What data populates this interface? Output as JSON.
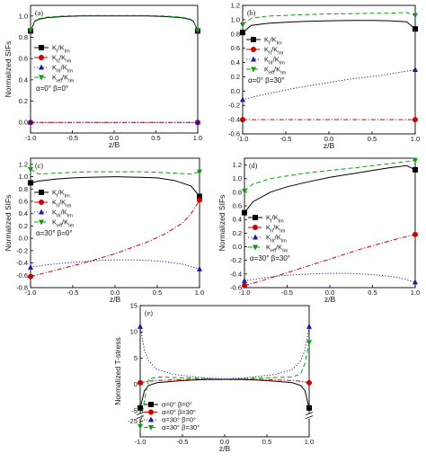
{
  "figure_title": "",
  "chart_data": [
    {
      "type": "line",
      "panel_label": "(a)",
      "ylabel": "Normalized SIFs",
      "xlabel": "z/B",
      "xlim": [
        -1.0,
        1.0
      ],
      "ylim": [
        -0.1,
        1.1
      ],
      "xticks": [
        "-1.0",
        "-0.5",
        "0.0",
        "0.5",
        "1.0"
      ],
      "yticks": [
        "0.0",
        "0.2",
        "0.4",
        "0.6",
        "0.8",
        "1.0"
      ],
      "grid": false,
      "legend_placement": "center-left",
      "annotation": "α=0° β=0°",
      "series": [
        {
          "name": "KI/KIm",
          "label_main": "K",
          "label_sub": "I",
          "label_den_sub": "Im",
          "style": "solid",
          "color": "#000000",
          "marker": "square",
          "x": [
            -1.0,
            -0.95,
            -0.9,
            -0.8,
            -0.6,
            -0.4,
            -0.2,
            0.0,
            0.2,
            0.4,
            0.6,
            0.8,
            0.9,
            0.95,
            1.0
          ],
          "y": [
            0.86,
            0.95,
            0.97,
            0.985,
            0.995,
            1.0,
            1.0,
            1.0,
            1.0,
            1.0,
            0.995,
            0.985,
            0.97,
            0.95,
            0.86
          ]
        },
        {
          "name": "KII/KIm",
          "label_main": "K",
          "label_sub": "II",
          "label_den_sub": "Im",
          "style": "dashdot",
          "color": "#cc0000",
          "marker": "circle",
          "x": [
            -1.0,
            -0.5,
            0.0,
            0.5,
            1.0
          ],
          "y": [
            0.0,
            0.0,
            0.0,
            0.0,
            0.0
          ]
        },
        {
          "name": "KIII/KIm",
          "label_main": "K",
          "label_sub": "III",
          "label_den_sub": "Im",
          "style": "dotted",
          "color": "#1a1aaa",
          "marker": "triangle-up",
          "x": [
            -1.0,
            -0.5,
            0.0,
            0.5,
            1.0
          ],
          "y": [
            0.0,
            0.0,
            0.0,
            0.0,
            0.0
          ]
        },
        {
          "name": "Keff/KIm",
          "label_main": "K",
          "label_sub": "eff",
          "label_den_sub": "Im",
          "style": "dashed",
          "color": "#119911",
          "marker": "triangle-down",
          "x": [
            -1.0,
            -0.95,
            -0.9,
            -0.8,
            -0.6,
            -0.4,
            -0.2,
            0.0,
            0.2,
            0.4,
            0.6,
            0.8,
            0.9,
            0.95,
            1.0
          ],
          "y": [
            0.865,
            0.955,
            0.975,
            0.99,
            1.0,
            1.005,
            1.005,
            1.005,
            1.005,
            1.005,
            1.0,
            0.99,
            0.975,
            0.955,
            0.865
          ]
        }
      ]
    },
    {
      "type": "line",
      "panel_label": "(b)",
      "ylabel": "",
      "xlabel": "z/B",
      "xlim": [
        -1.0,
        1.0
      ],
      "ylim": [
        -0.6,
        1.2
      ],
      "xticks": [
        "-1.0",
        "-0.5",
        "0.0",
        "0.5",
        "1.0"
      ],
      "yticks": [
        "-0.6",
        "-0.4",
        "-0.2",
        "0.0",
        "0.2",
        "0.4",
        "0.6",
        "0.8",
        "1.0",
        "1.2"
      ],
      "grid": false,
      "legend_placement": "center-left",
      "annotation": "α=0° β=30°",
      "series": [
        {
          "name": "KI/KIm",
          "label_main": "K",
          "label_sub": "I",
          "label_den_sub": "Im",
          "style": "solid",
          "color": "#000000",
          "marker": "square",
          "x": [
            -1.0,
            -0.9,
            -0.7,
            -0.5,
            -0.3,
            0.0,
            0.3,
            0.5,
            0.7,
            0.9,
            1.0
          ],
          "y": [
            0.82,
            0.92,
            0.95,
            0.965,
            0.975,
            0.985,
            0.99,
            0.99,
            0.985,
            0.97,
            0.87
          ]
        },
        {
          "name": "KII/KIm",
          "label_main": "K",
          "label_sub": "II",
          "label_den_sub": "Im",
          "style": "dashdot",
          "color": "#cc0000",
          "marker": "circle",
          "x": [
            -1.0,
            -0.5,
            0.0,
            0.5,
            1.0
          ],
          "y": [
            -0.4,
            -0.4,
            -0.4,
            -0.4,
            -0.4
          ]
        },
        {
          "name": "KIII/KIm",
          "label_main": "K",
          "label_sub": "III",
          "label_den_sub": "Im",
          "style": "dotted",
          "color": "#1a1aaa",
          "marker": "triangle-up",
          "x": [
            -1.0,
            -0.8,
            -0.6,
            -0.4,
            -0.2,
            0.0,
            0.2,
            0.4,
            0.6,
            0.8,
            1.0
          ],
          "y": [
            -0.12,
            -0.06,
            -0.01,
            0.04,
            0.08,
            0.12,
            0.16,
            0.19,
            0.22,
            0.26,
            0.3
          ]
        },
        {
          "name": "Keff/KIm",
          "label_main": "K",
          "label_sub": "eff",
          "label_den_sub": "Im",
          "style": "dashed",
          "color": "#119911",
          "marker": "triangle-down",
          "x": [
            -1.0,
            -0.9,
            -0.7,
            -0.5,
            -0.3,
            0.0,
            0.3,
            0.5,
            0.7,
            0.9,
            1.0
          ],
          "y": [
            0.93,
            1.02,
            1.05,
            1.06,
            1.07,
            1.08,
            1.085,
            1.09,
            1.09,
            1.1,
            1.06
          ]
        }
      ]
    },
    {
      "type": "line",
      "panel_label": "(c)",
      "ylabel": "Normalized SIFs",
      "xlabel": "z/B",
      "xlim": [
        -1.0,
        1.0
      ],
      "ylim": [
        -0.8,
        1.3
      ],
      "xticks": [
        "-1.0",
        "-0.5",
        "0.0",
        "0.5",
        "1.0"
      ],
      "yticks": [
        "-0.8",
        "-0.6",
        "-0.4",
        "-0.2",
        "0.0",
        "0.2",
        "0.4",
        "0.6",
        "0.8",
        "1.0",
        "1.2"
      ],
      "grid": false,
      "legend_placement": "center-left",
      "annotation": "α=30° β=0°",
      "series": [
        {
          "name": "KI/KIm",
          "label_main": "K",
          "label_sub": "I",
          "label_den_sub": "Im",
          "style": "solid",
          "color": "#000000",
          "marker": "square",
          "x": [
            -1.0,
            -0.9,
            -0.7,
            -0.5,
            -0.3,
            0.0,
            0.3,
            0.5,
            0.7,
            0.9,
            1.0
          ],
          "y": [
            0.9,
            0.93,
            0.96,
            0.98,
            0.99,
            1.0,
            0.99,
            0.98,
            0.94,
            0.85,
            0.68
          ]
        },
        {
          "name": "KII/KIm",
          "label_main": "K",
          "label_sub": "II",
          "label_den_sub": "Im",
          "style": "dashdot",
          "color": "#cc0000",
          "marker": "circle",
          "x": [
            -1.0,
            -0.8,
            -0.6,
            -0.4,
            -0.2,
            0.0,
            0.2,
            0.4,
            0.6,
            0.8,
            0.9,
            1.0
          ],
          "y": [
            -0.62,
            -0.55,
            -0.48,
            -0.41,
            -0.33,
            -0.25,
            -0.15,
            -0.05,
            0.08,
            0.25,
            0.4,
            0.62
          ]
        },
        {
          "name": "KIII/KIm",
          "label_main": "K",
          "label_sub": "III",
          "label_den_sub": "Im",
          "style": "dotted",
          "color": "#1a1aaa",
          "marker": "triangle-up",
          "x": [
            -1.0,
            -0.8,
            -0.6,
            -0.4,
            -0.2,
            0.0,
            0.2,
            0.4,
            0.6,
            0.8,
            1.0
          ],
          "y": [
            -0.47,
            -0.43,
            -0.4,
            -0.38,
            -0.36,
            -0.35,
            -0.35,
            -0.36,
            -0.38,
            -0.42,
            -0.5
          ]
        },
        {
          "name": "Keff/KIm",
          "label_main": "K",
          "label_sub": "eff",
          "label_den_sub": "Im",
          "style": "dashed",
          "color": "#119911",
          "marker": "triangle-down",
          "x": [
            -1.0,
            -0.9,
            -0.7,
            -0.5,
            -0.3,
            0.0,
            0.3,
            0.5,
            0.7,
            0.9,
            1.0
          ],
          "y": [
            1.12,
            1.04,
            1.06,
            1.07,
            1.08,
            1.08,
            1.08,
            1.07,
            1.06,
            1.04,
            1.08
          ]
        }
      ]
    },
    {
      "type": "line",
      "panel_label": "(d)",
      "ylabel": "Normalized SIFs",
      "xlabel": "z/B",
      "xlim": [
        -1.0,
        1.0
      ],
      "ylim": [
        -0.6,
        1.3
      ],
      "xticks": [
        "-1.0",
        "-0.5",
        "0.0",
        "0.5",
        "1.0"
      ],
      "yticks": [
        "-0.6",
        "-0.4",
        "-0.2",
        "0.0",
        "0.2",
        "0.4",
        "0.6",
        "0.8",
        "1.0",
        "1.2"
      ],
      "grid": false,
      "legend_placement": "center-left",
      "annotation": "α=30° β=30°",
      "series": [
        {
          "name": "KI/KIm",
          "label_main": "K",
          "label_sub": "I",
          "label_den_sub": "Im",
          "style": "solid",
          "color": "#000000",
          "marker": "square",
          "x": [
            -1.0,
            -0.9,
            -0.7,
            -0.5,
            -0.3,
            0.0,
            0.3,
            0.5,
            0.7,
            0.9,
            1.0
          ],
          "y": [
            0.5,
            0.66,
            0.8,
            0.88,
            0.94,
            1.02,
            1.08,
            1.12,
            1.16,
            1.19,
            1.13
          ]
        },
        {
          "name": "KII/KIm",
          "label_main": "K",
          "label_sub": "II",
          "label_den_sub": "Im",
          "style": "dashdot",
          "color": "#cc0000",
          "marker": "circle",
          "x": [
            -1.0,
            -0.8,
            -0.6,
            -0.4,
            -0.2,
            0.0,
            0.2,
            0.4,
            0.6,
            0.8,
            1.0
          ],
          "y": [
            -0.57,
            -0.5,
            -0.42,
            -0.34,
            -0.26,
            -0.18,
            -0.1,
            -0.02,
            0.05,
            0.12,
            0.18
          ]
        },
        {
          "name": "KIII/KIm",
          "label_main": "K",
          "label_sub": "III",
          "label_den_sub": "Im",
          "style": "dotted",
          "color": "#1a1aaa",
          "marker": "triangle-up",
          "x": [
            -1.0,
            -0.8,
            -0.6,
            -0.4,
            -0.2,
            0.0,
            0.2,
            0.4,
            0.6,
            0.8,
            1.0
          ],
          "y": [
            -0.5,
            -0.46,
            -0.43,
            -0.41,
            -0.4,
            -0.39,
            -0.39,
            -0.4,
            -0.42,
            -0.45,
            -0.52
          ]
        },
        {
          "name": "Keff/KIm",
          "label_main": "K",
          "label_sub": "eff",
          "label_den_sub": "Im",
          "style": "dashed",
          "color": "#119911",
          "marker": "triangle-down",
          "x": [
            -1.0,
            -0.9,
            -0.7,
            -0.5,
            -0.3,
            0.0,
            0.3,
            0.5,
            0.7,
            0.9,
            1.0
          ],
          "y": [
            0.82,
            0.92,
            1.0,
            1.04,
            1.08,
            1.12,
            1.16,
            1.19,
            1.22,
            1.25,
            1.27
          ]
        }
      ]
    },
    {
      "type": "line",
      "panel_label": "(e)",
      "ylabel": "Normalized T-stress",
      "xlabel": "z/B",
      "xlim": [
        -1.0,
        1.0
      ],
      "ylim": [
        -28,
        15
      ],
      "broken_axis": true,
      "xticks": [
        "-1.0",
        "-0.5",
        "0.0",
        "0.5",
        "1.0"
      ],
      "yticks": [
        "-25",
        "-5",
        "0",
        "5",
        "10",
        "15"
      ],
      "grid": false,
      "legend_placement": "bottom-left",
      "annotation": "",
      "series": [
        {
          "name": "α=0° β=0°",
          "style": "solid",
          "color": "#000000",
          "marker": "square",
          "x": [
            -1.0,
            -0.95,
            -0.9,
            -0.8,
            -0.6,
            -0.4,
            -0.2,
            0.0,
            0.2,
            0.4,
            0.6,
            0.8,
            0.9,
            0.95,
            1.0
          ],
          "y": [
            -4.5,
            -1.2,
            -0.2,
            0.3,
            0.6,
            0.8,
            0.9,
            0.9,
            0.9,
            0.8,
            0.6,
            0.3,
            -0.2,
            -1.2,
            -4.5
          ]
        },
        {
          "name": "α=0° β=30°",
          "style": "dashdot",
          "color": "#cc0000",
          "marker": "circle",
          "x": [
            -1.0,
            -0.9,
            -0.7,
            -0.5,
            -0.3,
            0.0,
            0.3,
            0.5,
            0.7,
            0.9,
            1.0
          ],
          "y": [
            0.3,
            0.6,
            0.8,
            0.9,
            1.0,
            1.0,
            1.0,
            0.9,
            0.8,
            0.6,
            0.3
          ]
        },
        {
          "name": "α=30° β=0°",
          "style": "dotted",
          "color": "#1a1aaa",
          "marker": "triangle-up",
          "x": [
            -1.0,
            -0.95,
            -0.9,
            -0.8,
            -0.6,
            -0.4,
            -0.2,
            0.0,
            0.2,
            0.4,
            0.6,
            0.8,
            0.9,
            0.95,
            1.0
          ],
          "y": [
            11,
            6.5,
            4.5,
            2.8,
            1.9,
            1.5,
            1.2,
            1.1,
            1.2,
            1.5,
            1.9,
            2.8,
            4.5,
            6.5,
            11
          ]
        },
        {
          "name": "α=30° β=30°",
          "style": "dashed",
          "color": "#119911",
          "marker": "triangle-down",
          "x": [
            -1.0,
            -0.95,
            -0.9,
            -0.8,
            -0.6,
            -0.4,
            -0.2,
            0.0,
            0.2,
            0.4,
            0.6,
            0.8,
            0.9,
            0.95,
            1.0
          ],
          "y": [
            -26,
            -3,
            1.0,
            1.4,
            1.3,
            1.2,
            1.1,
            1.0,
            1.1,
            1.2,
            1.3,
            1.4,
            2.0,
            4.0,
            8.0
          ]
        }
      ]
    }
  ],
  "colors": {
    "black": "#000000",
    "red": "#cc0000",
    "blue": "#1a1aaa",
    "green": "#119911",
    "background": "#ffffff"
  }
}
